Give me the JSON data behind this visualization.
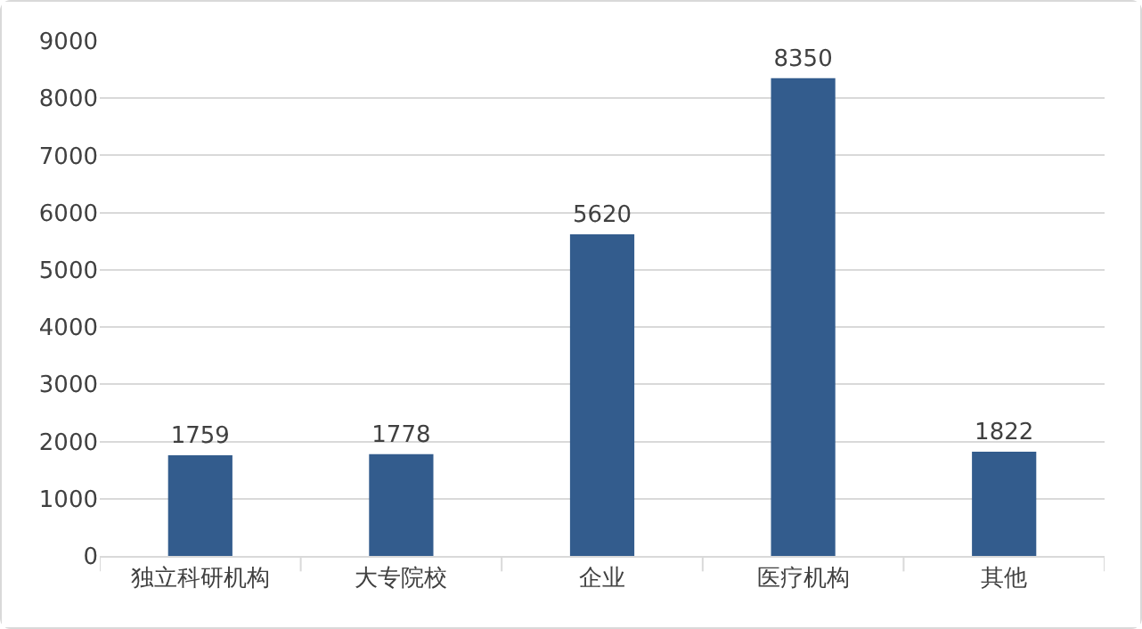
{
  "chart_data": {
    "type": "bar",
    "categories": [
      "独立科研机构",
      "大专院校",
      "企业",
      "医疗机构",
      "其他"
    ],
    "values": [
      1759,
      1778,
      5620,
      8350,
      1822
    ],
    "color": "#335c8d",
    "ylim": [
      0,
      9000
    ],
    "yticks": [
      0,
      1000,
      2000,
      3000,
      4000,
      5000,
      6000,
      7000,
      8000,
      9000
    ],
    "grid": "y",
    "data_labels": true
  }
}
